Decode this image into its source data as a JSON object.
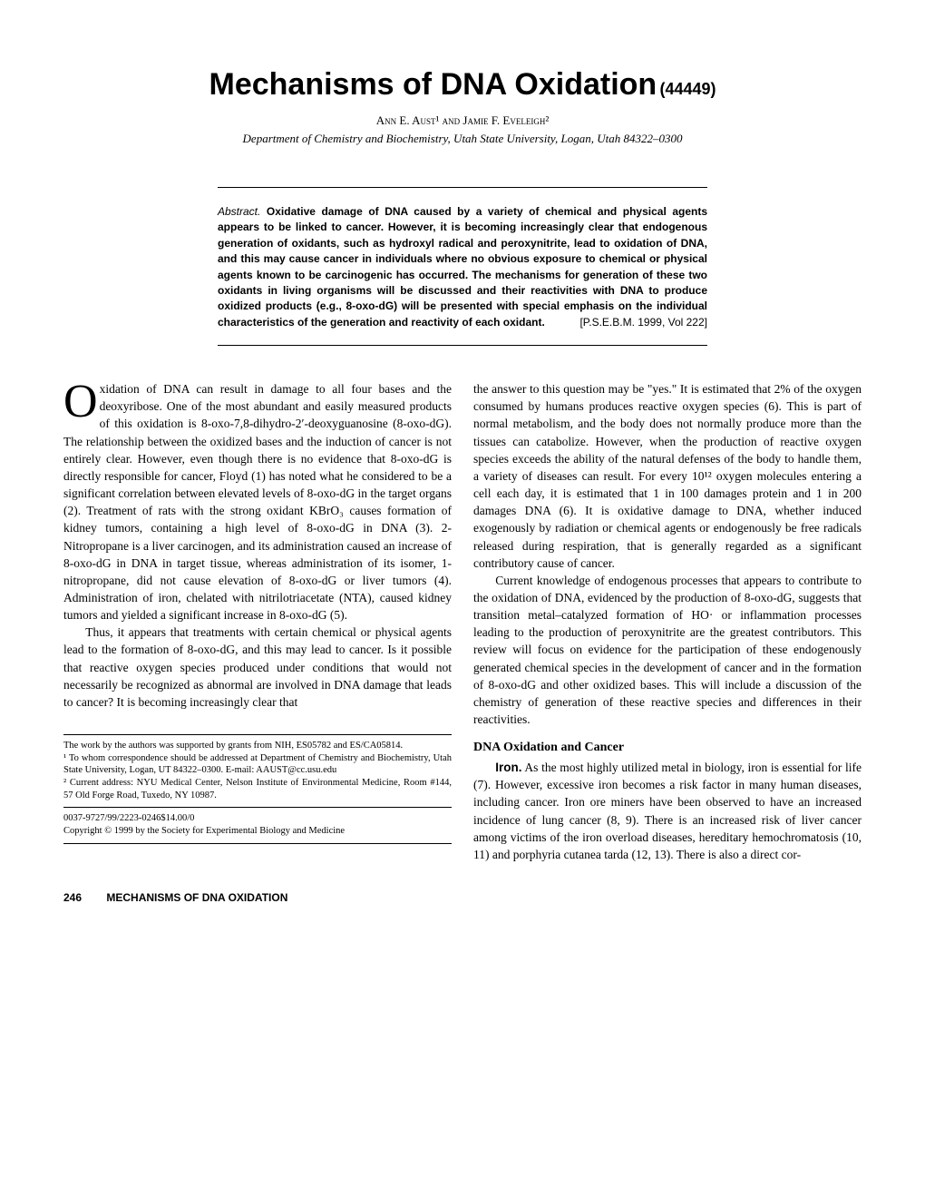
{
  "title": "Mechanisms of DNA Oxidation",
  "title_code": "(44449)",
  "authors": "Ann E. Aust¹ and Jamie F. Eveleigh²",
  "affiliation": "Department of Chemistry and Biochemistry, Utah State University, Logan, Utah 84322–0300",
  "abstract_label": "Abstract.",
  "abstract_body": "Oxidative damage of DNA caused by a variety of chemical and physical agents appears to be linked to cancer. However, it is becoming increasingly clear that endogenous generation of oxidants, such as hydroxyl radical and peroxynitrite, lead to oxidation of DNA, and this may cause cancer in individuals where no obvious exposure to chemical or physical agents known to be carcinogenic has occurred. The mechanisms for generation of these two oxidants in living organisms will be discussed and their reactivities with DNA to produce oxidized products (e.g., 8-oxo-dG) will be presented with special emphasis on the individual characteristics of the generation and reactivity of each oxidant.",
  "abstract_ref": "[P.S.E.B.M. 1999, Vol 222]",
  "body": {
    "p1_dropcap": "O",
    "p1": "xidation of DNA can result in damage to all four bases and the deoxyribose. One of the most abundant and easily measured products of this oxidation is 8-oxo-7,8-dihydro-2′-deoxyguanosine (8-oxo-dG). The relationship between the oxidized bases and the induction of cancer is not entirely clear. However, even though there is no evidence that 8-oxo-dG is directly responsible for cancer, Floyd (1) has noted what he considered to be a significant correlation between elevated levels of 8-oxo-dG in the target organs (2). Treatment of rats with the strong oxidant KBrO₃ causes formation of kidney tumors, containing a high level of 8-oxo-dG in DNA (3). 2-Nitropropane is a liver carcinogen, and its administration caused an increase of 8-oxo-dG in DNA in target tissue, whereas administration of its isomer, 1-nitropropane, did not cause elevation of 8-oxo-dG or liver tumors (4). Administration of iron, chelated with nitrilotriacetate (NTA), caused kidney tumors and yielded a significant increase in 8-oxo-dG (5).",
    "p2": "Thus, it appears that treatments with certain chemical or physical agents lead to the formation of 8-oxo-dG, and this may lead to cancer. Is it possible that reactive oxygen species produced under conditions that would not necessarily be recognized as abnormal are involved in DNA damage that leads to cancer? It is becoming increasingly clear that",
    "p3": "the answer to this question may be \"yes.\" It is estimated that 2% of the oxygen consumed by humans produces reactive oxygen species (6). This is part of normal metabolism, and the body does not normally produce more than the tissues can catabolize. However, when the production of reactive oxygen species exceeds the ability of the natural defenses of the body to handle them, a variety of diseases can result. For every 10¹² oxygen molecules entering a cell each day, it is estimated that 1 in 100 damages protein and 1 in 200 damages DNA (6). It is oxidative damage to DNA, whether induced exogenously by radiation or chemical agents or endogenously be free radicals released during respiration, that is generally regarded as a significant contributory cause of cancer.",
    "p4": "Current knowledge of endogenous processes that appears to contribute to the oxidation of DNA, evidenced by the production of 8-oxo-dG, suggests that transition metal–catalyzed formation of HO· or inflammation processes leading to the production of peroxynitrite are the greatest contributors. This review will focus on evidence for the participation of these endogenously generated chemical species in the development of cancer and in the formation of 8-oxo-dG and other oxidized bases. This will include a discussion of the chemistry of generation of these reactive species and differences in their reactivities.",
    "section_heading": "DNA Oxidation and Cancer",
    "p5_runin": "Iron.",
    "p5": " As the most highly utilized metal in biology, iron is essential for life (7). However, excessive iron becomes a risk factor in many human diseases, including cancer. Iron ore miners have been observed to have an increased incidence of lung cancer (8, 9). There is an increased risk of liver cancer among victims of the iron overload diseases, hereditary hemochromatosis (10, 11) and porphyria cutanea tarda (12, 13). There is also a direct cor-"
  },
  "footnotes": {
    "grant": "The work by the authors was supported by grants from NIH, ES05782 and ES/CA05814.",
    "n1": "¹ To whom correspondence should be addressed at Department of Chemistry and Biochemistry, Utah State University, Logan, UT 84322–0300. E-mail: AAUST@cc.usu.edu",
    "n2": "² Current address: NYU Medical Center, Nelson Institute of Environmental Medicine, Room #144, 57 Old Forge Road, Tuxedo, NY 10987.",
    "issn": "0037-9727/99/2223-0246$14.00/0",
    "copyright": "Copyright © 1999 by the Society for Experimental Biology and Medicine"
  },
  "footer": {
    "page": "246",
    "running": "MECHANISMS OF DNA OXIDATION"
  }
}
